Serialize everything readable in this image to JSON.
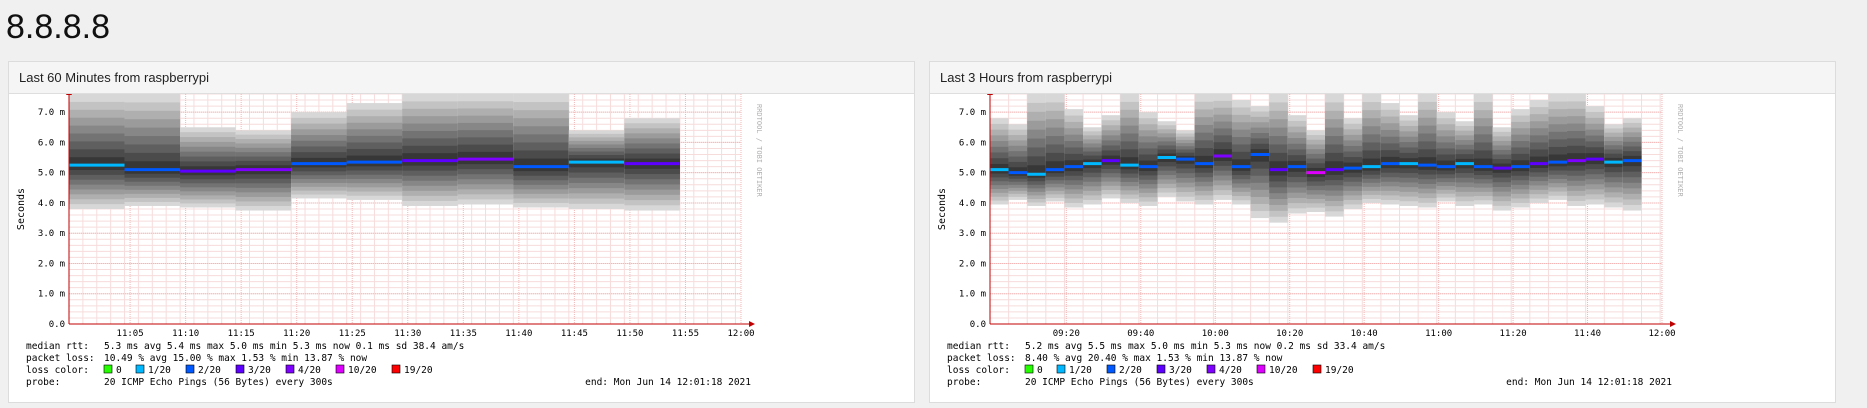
{
  "page": {
    "title": "8.8.8.8"
  },
  "colors": {
    "bg_grid_major": "#f3b7b7",
    "bg_grid_minor": "#f7dcdc",
    "axis": "#c00000",
    "smoke_light": "#d6d6d6",
    "smoke_dark": "#3a3a3a"
  },
  "loss_colors": [
    {
      "label": "0",
      "color": "#26ff00"
    },
    {
      "label": "1/20",
      "color": "#00b8ff"
    },
    {
      "label": "2/20",
      "color": "#0059ff"
    },
    {
      "label": "3/20",
      "color": "#5e00ff"
    },
    {
      "label": "4/20",
      "color": "#7e00ff"
    },
    {
      "label": "10/20",
      "color": "#dd00ff"
    },
    {
      "label": "19/20",
      "color": "#ff0000"
    }
  ],
  "panels": [
    {
      "header": "Last 60 Minutes from raspberrypi",
      "stats": {
        "median_label": "median rtt:",
        "median_values": "5.3 ms avg  5.4 ms max  5.0 ms min  5.3 ms now  0.1 ms sd  38.4  am/s",
        "loss_label": "packet loss:",
        "loss_values": "10.49 % avg  15.00 % max  1.53 % min  13.87 % now",
        "color_label": "loss color:",
        "probe_label": "probe:",
        "probe_value": "20 ICMP Echo Pings (56 Bytes) every 300s",
        "end": "end: Mon Jun 14 12:01:18 2021"
      },
      "chart_data": {
        "type": "area",
        "title": "",
        "ylabel": "Seconds",
        "ylim": [
          0,
          7.6
        ],
        "yticks": [
          "0.0",
          "1.0 m",
          "2.0 m",
          "3.0 m",
          "4.0 m",
          "5.0 m",
          "6.0 m",
          "7.0 m"
        ],
        "xticks": [
          "11:05",
          "11:10",
          "11:15",
          "11:20",
          "11:25",
          "11:30",
          "11:35",
          "11:40",
          "11:45",
          "11:50",
          "11:55",
          "12:00"
        ],
        "x": [
          "11:02",
          "11:07",
          "11:12",
          "11:17",
          "11:22",
          "11:27",
          "11:32",
          "11:37",
          "11:42",
          "11:47",
          "11:52"
        ],
        "median_ms": [
          5.25,
          5.1,
          5.05,
          5.1,
          5.3,
          5.35,
          5.4,
          5.45,
          5.2,
          5.35,
          5.3
        ],
        "min_ms": [
          3.8,
          3.9,
          3.85,
          3.75,
          4.15,
          4.1,
          3.9,
          3.95,
          3.85,
          3.8,
          3.75
        ],
        "max_ms": [
          7.6,
          7.6,
          6.5,
          6.4,
          7.0,
          7.3,
          7.6,
          7.6,
          7.6,
          6.4,
          6.8
        ],
        "loss": [
          "1/20",
          "2/20",
          "3/20",
          "4/20",
          "2/20",
          "2/20",
          "3/20",
          "4/20",
          "2/20",
          "1/20",
          "3/20"
        ],
        "watermark": "RRDTOOL / TOBI OETIKER"
      }
    },
    {
      "header": "Last 3 Hours from raspberrypi",
      "stats": {
        "median_label": "median rtt:",
        "median_values": "5.2 ms avg  5.5 ms max  5.0 ms min  5.3 ms now  0.2 ms sd  33.4  am/s",
        "loss_label": "packet loss:",
        "loss_values": "8.40 % avg  20.40 % max  1.53 % min  13.87 % now",
        "color_label": "loss color:",
        "probe_label": "probe:",
        "probe_value": "20 ICMP Echo Pings (56 Bytes) every 300s",
        "end": "end: Mon Jun 14 12:01:18 2021"
      },
      "chart_data": {
        "type": "area",
        "title": "",
        "ylabel": "Seconds",
        "ylim": [
          0,
          7.6
        ],
        "yticks": [
          "0.0",
          "1.0 m",
          "2.0 m",
          "3.0 m",
          "4.0 m",
          "5.0 m",
          "6.0 m",
          "7.0 m"
        ],
        "xticks": [
          "09:20",
          "09:40",
          "10:00",
          "10:20",
          "10:40",
          "11:00",
          "11:20",
          "11:40",
          "12:00"
        ],
        "x": [
          "09:02",
          "09:07",
          "09:12",
          "09:17",
          "09:22",
          "09:27",
          "09:32",
          "09:37",
          "09:42",
          "09:47",
          "09:52",
          "09:57",
          "10:02",
          "10:07",
          "10:12",
          "10:17",
          "10:22",
          "10:27",
          "10:32",
          "10:37",
          "10:42",
          "10:47",
          "10:52",
          "10:57",
          "11:02",
          "11:07",
          "11:12",
          "11:17",
          "11:22",
          "11:27",
          "11:32",
          "11:37",
          "11:42",
          "11:47",
          "11:52"
        ],
        "median_ms": [
          5.1,
          5.0,
          4.95,
          5.1,
          5.2,
          5.3,
          5.4,
          5.25,
          5.2,
          5.5,
          5.45,
          5.3,
          5.55,
          5.2,
          5.6,
          5.1,
          5.2,
          5.0,
          5.1,
          5.15,
          5.2,
          5.3,
          5.3,
          5.25,
          5.2,
          5.3,
          5.2,
          5.15,
          5.2,
          5.3,
          5.35,
          5.4,
          5.45,
          5.35,
          5.4
        ],
        "min_ms": [
          3.95,
          4.1,
          3.9,
          4.05,
          3.85,
          3.95,
          4.15,
          4.0,
          3.9,
          4.2,
          4.05,
          3.95,
          4.1,
          3.95,
          3.5,
          3.35,
          3.65,
          3.7,
          3.55,
          3.8,
          4.0,
          3.95,
          3.9,
          3.85,
          4.05,
          3.9,
          3.95,
          3.75,
          3.85,
          4.0,
          4.1,
          3.9,
          3.95,
          3.85,
          3.75
        ],
        "max_ms": [
          6.8,
          6.6,
          7.6,
          7.6,
          7.1,
          6.5,
          6.9,
          7.6,
          7.0,
          6.7,
          6.4,
          7.6,
          7.6,
          7.4,
          7.2,
          7.6,
          6.9,
          6.4,
          7.6,
          6.8,
          7.6,
          7.3,
          6.9,
          7.6,
          7.0,
          6.7,
          7.6,
          6.5,
          7.1,
          7.4,
          7.6,
          7.6,
          7.2,
          6.6,
          6.8
        ],
        "loss": [
          "1/20",
          "2/20",
          "1/20",
          "2/20",
          "2/20",
          "1/20",
          "3/20",
          "1/20",
          "2/20",
          "1/20",
          "2/20",
          "2/20",
          "4/20",
          "2/20",
          "2/20",
          "3/20",
          "2/20",
          "10/20",
          "3/20",
          "2/20",
          "1/20",
          "2/20",
          "1/20",
          "2/20",
          "2/20",
          "1/20",
          "2/20",
          "3/20",
          "2/20",
          "3/20",
          "2/20",
          "4/20",
          "3/20",
          "1/20",
          "2/20"
        ],
        "watermark": "RRDTOOL / TOBI OETIKER"
      }
    }
  ]
}
